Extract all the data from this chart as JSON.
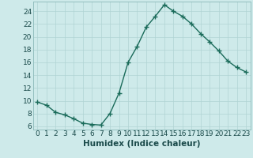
{
  "x": [
    0,
    1,
    2,
    3,
    4,
    5,
    6,
    7,
    8,
    9,
    10,
    11,
    12,
    13,
    14,
    15,
    16,
    17,
    18,
    19,
    20,
    21,
    22,
    23
  ],
  "y": [
    9.8,
    9.3,
    8.2,
    7.8,
    7.2,
    6.5,
    6.3,
    6.2,
    8.0,
    11.2,
    16.0,
    18.5,
    21.5,
    23.2,
    25.0,
    24.0,
    23.2,
    22.0,
    20.5,
    19.2,
    17.8,
    16.2,
    15.2,
    14.5
  ],
  "line_color": "#1a6b5a",
  "marker": "+",
  "marker_size": 4,
  "linewidth": 1.0,
  "xlabel": "Humidex (Indice chaleur)",
  "xlim": [
    -0.5,
    23.5
  ],
  "ylim": [
    5.5,
    25.5
  ],
  "yticks": [
    6,
    8,
    10,
    12,
    14,
    16,
    18,
    20,
    22,
    24
  ],
  "xticks": [
    0,
    1,
    2,
    3,
    4,
    5,
    6,
    7,
    8,
    9,
    10,
    11,
    12,
    13,
    14,
    15,
    16,
    17,
    18,
    19,
    20,
    21,
    22,
    23
  ],
  "background_color": "#ceeaea",
  "grid_color": "#b0d4d4",
  "tick_fontsize": 6.5,
  "xlabel_fontsize": 7.5
}
